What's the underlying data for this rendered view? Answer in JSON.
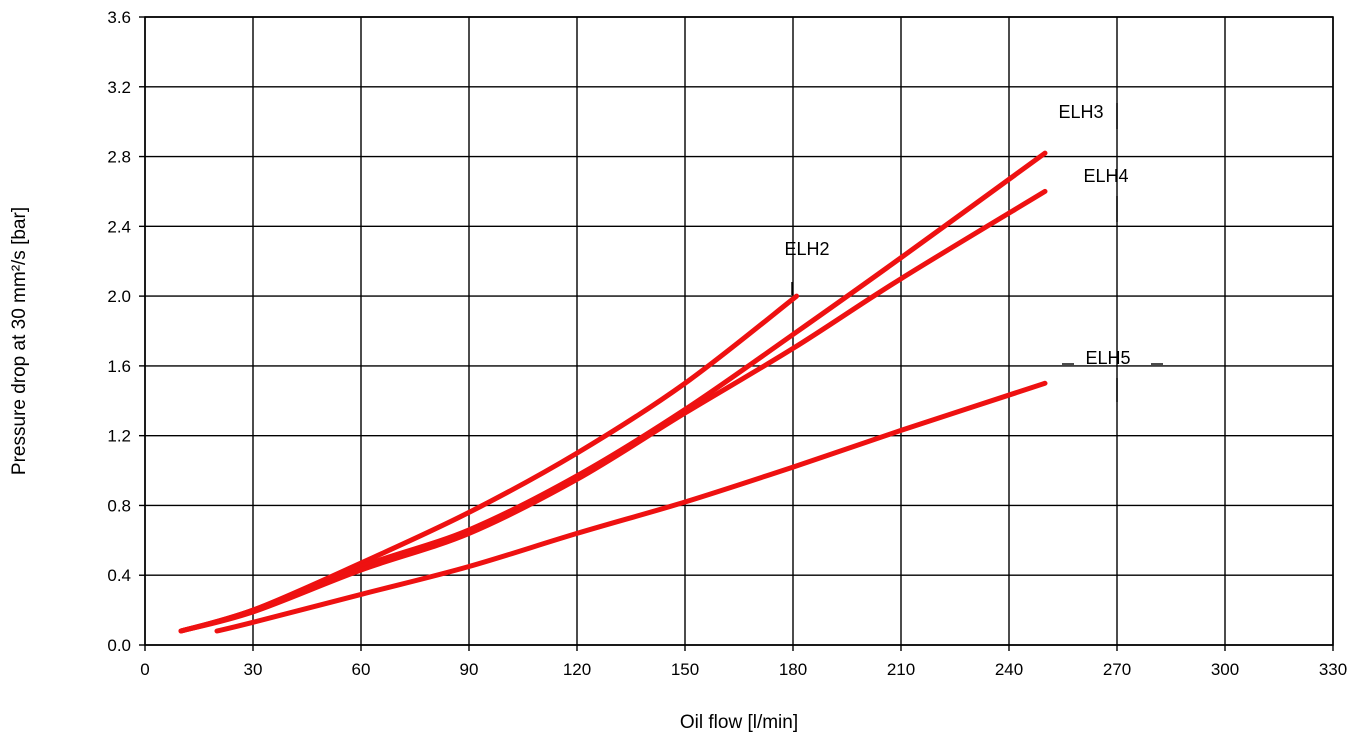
{
  "chart_data": {
    "type": "line",
    "title": "",
    "xlabel": "Oil flow [l/min]",
    "ylabel": "Pressure drop at 30 mm²/s [bar]",
    "xlim": [
      0,
      330
    ],
    "ylim": [
      0,
      3.6
    ],
    "x_ticks": [
      "0",
      "30",
      "60",
      "90",
      "120",
      "150",
      "180",
      "210",
      "240",
      "270",
      "300",
      "330"
    ],
    "y_ticks": [
      "0.0",
      "0.4",
      "0.8",
      "1.2",
      "1.6",
      "2.0",
      "2.4",
      "2.8",
      "3.2",
      "3.6"
    ],
    "grid": true,
    "line_color": "#ee1111",
    "series": [
      {
        "name": "ELH2",
        "x": [
          10,
          30,
          60,
          90,
          120,
          150,
          181
        ],
        "y": [
          0.08,
          0.2,
          0.47,
          0.76,
          1.1,
          1.5,
          2.0
        ]
      },
      {
        "name": "ELH3",
        "x": [
          10,
          30,
          60,
          90,
          120,
          150,
          180,
          210,
          250
        ],
        "y": [
          0.08,
          0.2,
          0.45,
          0.66,
          0.97,
          1.35,
          1.78,
          2.22,
          2.82
        ]
      },
      {
        "name": "ELH4",
        "x": [
          10,
          30,
          60,
          90,
          120,
          150,
          180,
          210,
          250
        ],
        "y": [
          0.08,
          0.19,
          0.43,
          0.64,
          0.95,
          1.33,
          1.7,
          2.1,
          2.6
        ]
      },
      {
        "name": "ELH5",
        "x": [
          20,
          30,
          60,
          90,
          120,
          150,
          180,
          210,
          250
        ],
        "y": [
          0.08,
          0.13,
          0.29,
          0.45,
          0.64,
          0.82,
          1.02,
          1.23,
          1.5
        ]
      }
    ]
  }
}
